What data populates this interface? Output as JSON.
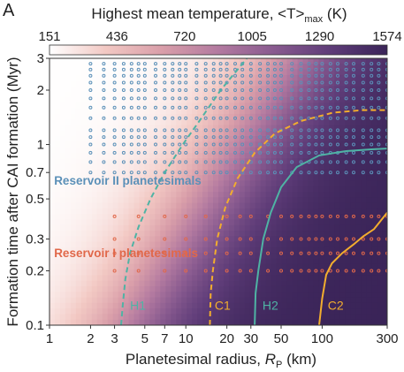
{
  "panel_label": "A",
  "chart_data": {
    "type": "heatmap",
    "title": "Highest mean temperature, < T > max (K)",
    "colorbar": {
      "title": "Highest mean temperature, <T>",
      "title_sub": "max",
      "title_unit": "(K)",
      "ticks": [
        "151",
        "436",
        "720",
        "1005",
        "1290",
        "1574"
      ],
      "range": [
        151,
        1574
      ],
      "colors": [
        "#ffffff",
        "#f2c8c3",
        "#d99ea9",
        "#b37aa0",
        "#885a8f",
        "#5e3c78",
        "#3a2458"
      ]
    },
    "xlabel": "Planetesimal radius, ",
    "xlabel_symbol": "R",
    "xlabel_sub": "P",
    "xlabel_unit": " (km)",
    "ylabel": "Formation time after CAI formation (Myr)",
    "xscale": "log",
    "yscale": "log",
    "xlim": [
      1,
      300
    ],
    "ylim": [
      0.1,
      3
    ],
    "x_ticks": [
      {
        "value": 1,
        "label": "1"
      },
      {
        "value": 2,
        "label": "2"
      },
      {
        "value": 3,
        "label": "3"
      },
      {
        "value": 5,
        "label": "5"
      },
      {
        "value": 7,
        "label": "7"
      },
      {
        "value": 10,
        "label": "10"
      },
      {
        "value": 20,
        "label": "20"
      },
      {
        "value": 30,
        "label": "30"
      },
      {
        "value": 50,
        "label": "50"
      },
      {
        "value": 100,
        "label": "100"
      },
      {
        "value": 300,
        "label": "300"
      }
    ],
    "y_ticks": [
      {
        "value": 0.1,
        "label": "0.1"
      },
      {
        "value": 0.2,
        "label": "0.2"
      },
      {
        "value": 0.3,
        "label": "0.3"
      },
      {
        "value": 0.5,
        "label": "0.5"
      },
      {
        "value": 0.7,
        "label": "0.7"
      },
      {
        "value": 1,
        "label": "1"
      },
      {
        "value": 2,
        "label": "2"
      },
      {
        "value": 3,
        "label": "3"
      }
    ],
    "contours": [
      {
        "name": "H1",
        "style": "dashed",
        "color": "#4fb3a4",
        "points": [
          [
            3.35,
            0.1
          ],
          [
            3.45,
            0.13
          ],
          [
            3.6,
            0.18
          ],
          [
            3.9,
            0.25
          ],
          [
            4.5,
            0.35
          ],
          [
            5.5,
            0.5
          ],
          [
            7,
            0.7
          ],
          [
            9.5,
            1.0
          ],
          [
            13,
            1.4
          ],
          [
            18,
            2.0
          ],
          [
            24,
            2.6
          ],
          [
            28,
            3.0
          ]
        ],
        "label_at": [
          3.9,
          0.122
        ]
      },
      {
        "name": "C1",
        "style": "dashed",
        "color": "#f2ad2e",
        "points": [
          [
            15,
            0.1
          ],
          [
            15.2,
            0.15
          ],
          [
            15.8,
            0.2
          ],
          [
            17,
            0.3
          ],
          [
            19.5,
            0.45
          ],
          [
            24,
            0.65
          ],
          [
            32,
            0.9
          ],
          [
            45,
            1.15
          ],
          [
            70,
            1.35
          ],
          [
            120,
            1.5
          ],
          [
            200,
            1.55
          ],
          [
            300,
            1.55
          ]
        ],
        "label_at": [
          16.3,
          0.122
        ]
      },
      {
        "name": "H2",
        "style": "solid",
        "color": "#4fb3a4",
        "points": [
          [
            32,
            0.1
          ],
          [
            32.5,
            0.15
          ],
          [
            34,
            0.2
          ],
          [
            37,
            0.3
          ],
          [
            42,
            0.42
          ],
          [
            50,
            0.58
          ],
          [
            65,
            0.75
          ],
          [
            95,
            0.87
          ],
          [
            150,
            0.92
          ],
          [
            230,
            0.94
          ],
          [
            300,
            0.95
          ]
        ],
        "label_at": [
          36.5,
          0.122
        ]
      },
      {
        "name": "C2",
        "style": "solid",
        "color": "#f2ad2e",
        "points": [
          [
            95,
            0.1
          ],
          [
            100,
            0.14
          ],
          [
            107,
            0.19
          ],
          [
            118,
            0.22
          ],
          [
            140,
            0.25
          ],
          [
            170,
            0.28
          ],
          [
            200,
            0.31
          ],
          [
            240,
            0.34
          ],
          [
            270,
            0.38
          ],
          [
            300,
            0.42
          ]
        ],
        "label_at": [
          110,
          0.122
        ]
      }
    ],
    "annotations": [
      {
        "text": "Reservoir II planetesimals",
        "color": "#5b90b8",
        "at": [
          1.08,
          0.6
        ]
      },
      {
        "text": "Reservoir I planetesimals",
        "color": "#e1684a",
        "at": [
          1.08,
          0.238
        ]
      }
    ],
    "reservoir_II_points": {
      "color": "#5b90b8",
      "x": [
        2,
        2.5,
        3,
        3.5,
        4,
        4.5,
        5,
        6,
        7,
        8,
        9,
        10,
        12,
        14,
        16,
        18,
        20,
        23,
        26,
        30,
        35,
        40,
        45,
        50,
        60,
        70,
        80,
        90,
        100,
        115,
        130,
        150,
        170,
        200,
        230,
        260,
        300
      ],
      "y": [
        0.7,
        0.8,
        0.9,
        1.0,
        1.1,
        1.2,
        1.4,
        1.6,
        1.8,
        2.0,
        2.2,
        2.4,
        2.6,
        2.8
      ]
    },
    "reservoir_I_points": {
      "color": "#e1684a",
      "x": [
        3,
        4.5,
        7,
        10,
        14,
        20,
        25,
        30,
        40,
        50,
        60,
        70,
        80,
        90,
        100,
        115,
        130,
        150,
        170,
        200,
        230,
        260,
        300
      ],
      "y": [
        0.2,
        0.25,
        0.3,
        0.4
      ]
    }
  }
}
